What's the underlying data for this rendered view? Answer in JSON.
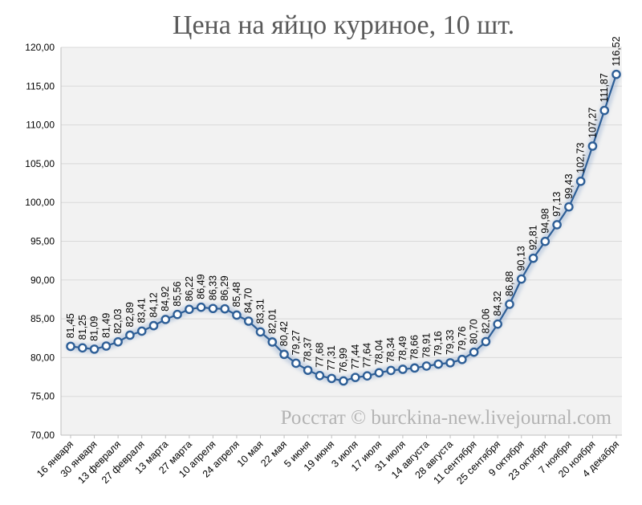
{
  "chart_data": {
    "type": "line",
    "title": "Цена на яйцо куриное, 10 шт.",
    "watermark": "Росстат © burckina-new.livejournal.com",
    "xlabel": "",
    "ylabel": "",
    "ylim": [
      70,
      120
    ],
    "yticks": [
      "70,00",
      "75,00",
      "80,00",
      "85,00",
      "90,00",
      "95,00",
      "100,00",
      "105,00",
      "110,00",
      "115,00",
      "120,00"
    ],
    "grid": true,
    "legend": "none",
    "colors": {
      "line": "#2e5f97",
      "marker_fill": "#ffffff",
      "marker_edge": "#2e5f97",
      "plot_bg": "#f2f2f2",
      "grid": "#d9d9d9"
    },
    "x_tick_labels": [
      "16 января",
      "30 января",
      "13 февраля",
      "27 февраля",
      "13 марта",
      "27 марта",
      "10 апреля",
      "24 апреля",
      "10 мая",
      "22 мая",
      "5 июня",
      "19 июня",
      "3 июля",
      "17 июля",
      "31 июля",
      "14 августа",
      "28 августа",
      "11 сентября",
      "25 сентября",
      "9 октября",
      "23 октября",
      "7 ноября",
      "20 ноября",
      "4 декабря"
    ],
    "values": [
      81.45,
      81.25,
      81.09,
      81.49,
      82.03,
      82.89,
      83.41,
      84.12,
      84.92,
      85.56,
      86.22,
      86.49,
      86.33,
      86.29,
      85.48,
      84.7,
      83.31,
      82.01,
      80.42,
      79.27,
      78.37,
      77.68,
      77.31,
      76.99,
      77.44,
      77.64,
      78.04,
      78.34,
      78.49,
      78.66,
      78.91,
      79.16,
      79.33,
      79.76,
      80.7,
      82.06,
      84.32,
      86.88,
      90.13,
      92.81,
      94.98,
      97.13,
      99.43,
      102.73,
      107.27,
      111.87,
      116.52
    ],
    "value_labels": [
      "81,45",
      "81,25",
      "81,09",
      "81,49",
      "82,03",
      "82,89",
      "83,41",
      "84,12",
      "84,92",
      "85,56",
      "86,22",
      "86,49",
      "86,33",
      "86,29",
      "85,48",
      "84,70",
      "83,31",
      "82,01",
      "80,42",
      "79,27",
      "78,37",
      "77,68",
      "77,31",
      "76,99",
      "77,44",
      "77,64",
      "78,04",
      "78,34",
      "78,49",
      "78,66",
      "78,91",
      "79,16",
      "79,33",
      "79,76",
      "80,70",
      "82,06",
      "84,32",
      "86,88",
      "90,13",
      "92,81",
      "94,98",
      "97,13",
      "99,43",
      "102,73",
      "107,27",
      "111,87",
      "116,52"
    ]
  }
}
